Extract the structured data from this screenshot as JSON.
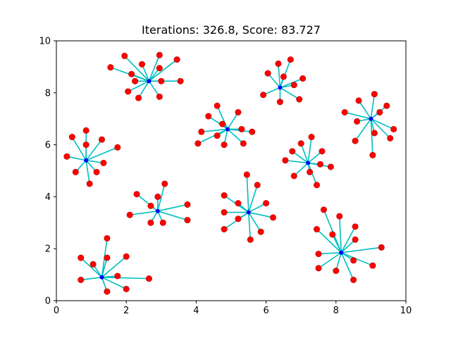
{
  "chart_data": {
    "type": "scatter",
    "title": "Iterations: 326.8, Score: 83.727",
    "xlabel": "",
    "ylabel": "",
    "xlim": [
      0,
      10
    ],
    "ylim": [
      0,
      10
    ],
    "xticks": [
      "0",
      "2",
      "4",
      "6",
      "8",
      "10"
    ],
    "yticks": [
      "0",
      "2",
      "4",
      "6",
      "8",
      "10"
    ],
    "grid": false,
    "colors": {
      "points": "#ff0000",
      "point_edge": "#b00000",
      "centers": "#0000ff",
      "links": "#00bfbf"
    },
    "clusters": [
      {
        "center": [
          2.65,
          8.45
        ],
        "points": [
          [
            1.55,
            8.98
          ],
          [
            1.95,
            9.42
          ],
          [
            2.15,
            8.72
          ],
          [
            2.25,
            8.45
          ],
          [
            2.45,
            9.1
          ],
          [
            2.05,
            8.05
          ],
          [
            2.35,
            7.8
          ],
          [
            2.95,
            9.45
          ],
          [
            2.95,
            8.95
          ],
          [
            3.0,
            8.45
          ],
          [
            2.95,
            7.85
          ],
          [
            3.45,
            9.28
          ],
          [
            3.55,
            8.45
          ]
        ]
      },
      {
        "center": [
          6.4,
          8.2
        ],
        "points": [
          [
            6.05,
            8.75
          ],
          [
            6.35,
            9.12
          ],
          [
            6.7,
            9.28
          ],
          [
            6.5,
            8.62
          ],
          [
            7.05,
            8.55
          ],
          [
            6.8,
            8.3
          ],
          [
            5.92,
            7.92
          ],
          [
            6.4,
            7.65
          ],
          [
            6.95,
            7.75
          ]
        ]
      },
      {
        "center": [
          9.0,
          7.0
        ],
        "points": [
          [
            8.25,
            7.25
          ],
          [
            8.65,
            7.7
          ],
          [
            9.1,
            7.95
          ],
          [
            9.45,
            7.5
          ],
          [
            9.25,
            7.25
          ],
          [
            8.6,
            6.9
          ],
          [
            8.55,
            6.15
          ],
          [
            9.1,
            6.45
          ],
          [
            9.55,
            6.25
          ],
          [
            9.65,
            6.6
          ],
          [
            9.05,
            5.6
          ]
        ]
      },
      {
        "center": [
          4.9,
          6.6
        ],
        "points": [
          [
            4.35,
            7.1
          ],
          [
            4.6,
            7.5
          ],
          [
            5.2,
            7.25
          ],
          [
            4.75,
            6.8
          ],
          [
            4.15,
            6.5
          ],
          [
            4.6,
            6.35
          ],
          [
            5.3,
            6.6
          ],
          [
            5.6,
            6.5
          ],
          [
            4.05,
            6.05
          ],
          [
            4.8,
            6.0
          ],
          [
            5.35,
            6.05
          ]
        ]
      },
      {
        "center": [
          0.85,
          5.4
        ],
        "points": [
          [
            0.45,
            6.3
          ],
          [
            0.85,
            6.55
          ],
          [
            1.3,
            6.2
          ],
          [
            0.85,
            6.0
          ],
          [
            1.75,
            5.9
          ],
          [
            0.3,
            5.55
          ],
          [
            1.35,
            5.3
          ],
          [
            0.55,
            4.95
          ],
          [
            1.15,
            4.95
          ],
          [
            0.95,
            4.5
          ]
        ]
      },
      {
        "center": [
          7.2,
          5.3
        ],
        "points": [
          [
            6.75,
            5.75
          ],
          [
            7.0,
            6.05
          ],
          [
            7.3,
            6.3
          ],
          [
            7.6,
            5.75
          ],
          [
            6.55,
            5.4
          ],
          [
            7.55,
            5.25
          ],
          [
            7.85,
            5.15
          ],
          [
            6.8,
            4.8
          ],
          [
            7.25,
            4.95
          ],
          [
            7.45,
            4.45
          ]
        ]
      },
      {
        "center": [
          2.9,
          3.45
        ],
        "points": [
          [
            2.3,
            4.1
          ],
          [
            2.7,
            3.65
          ],
          [
            2.9,
            4.0
          ],
          [
            3.1,
            4.5
          ],
          [
            3.75,
            3.7
          ],
          [
            2.1,
            3.3
          ],
          [
            2.7,
            3.0
          ],
          [
            3.05,
            3.0
          ],
          [
            3.75,
            3.1
          ]
        ]
      },
      {
        "center": [
          5.5,
          3.4
        ],
        "points": [
          [
            4.8,
            4.05
          ],
          [
            5.45,
            4.85
          ],
          [
            5.75,
            4.45
          ],
          [
            5.2,
            3.75
          ],
          [
            6.0,
            3.75
          ],
          [
            4.8,
            3.4
          ],
          [
            5.2,
            3.15
          ],
          [
            6.2,
            3.2
          ],
          [
            4.8,
            2.75
          ],
          [
            5.55,
            2.35
          ],
          [
            5.85,
            2.65
          ]
        ]
      },
      {
        "center": [
          8.15,
          1.85
        ],
        "points": [
          [
            7.65,
            3.5
          ],
          [
            8.1,
            3.25
          ],
          [
            7.45,
            2.75
          ],
          [
            7.9,
            2.55
          ],
          [
            8.55,
            2.85
          ],
          [
            8.55,
            2.35
          ],
          [
            9.3,
            2.05
          ],
          [
            7.5,
            1.8
          ],
          [
            8.5,
            1.55
          ],
          [
            9.05,
            1.35
          ],
          [
            7.5,
            1.25
          ],
          [
            8.0,
            1.15
          ],
          [
            8.5,
            0.8
          ]
        ]
      },
      {
        "center": [
          1.3,
          0.9
        ],
        "points": [
          [
            0.7,
            1.65
          ],
          [
            1.05,
            1.4
          ],
          [
            1.45,
            2.4
          ],
          [
            1.45,
            1.65
          ],
          [
            2.0,
            1.7
          ],
          [
            1.75,
            0.95
          ],
          [
            2.65,
            0.85
          ],
          [
            0.7,
            0.8
          ],
          [
            1.45,
            0.35
          ],
          [
            2.0,
            0.45
          ]
        ]
      }
    ]
  }
}
